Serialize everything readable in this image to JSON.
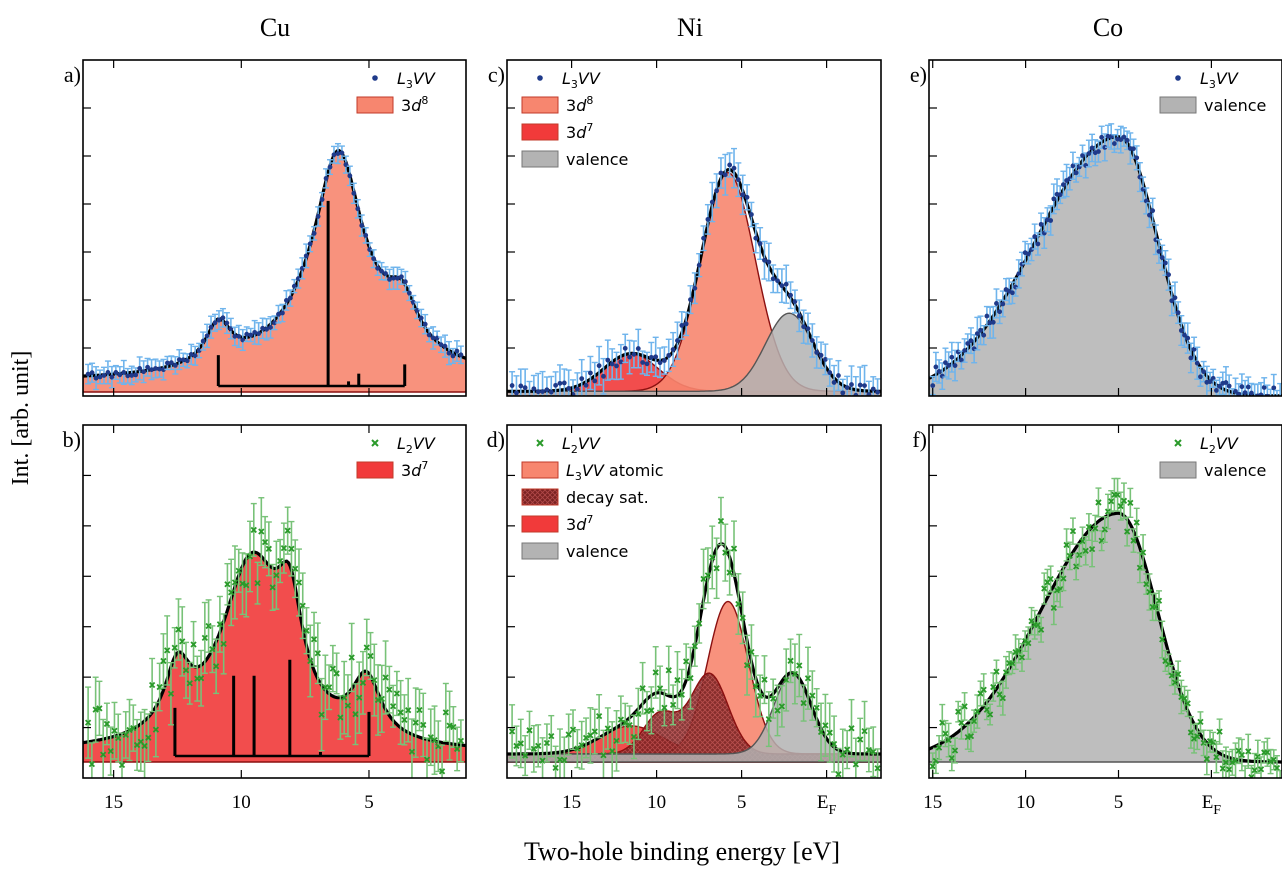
{
  "figure": {
    "column_titles": [
      "Cu",
      "Ni",
      "Co"
    ],
    "ylabel": "Int. [arb. unit]",
    "xlabel": "Two-hole binding energy [eV]"
  },
  "colors": {
    "l3_points": "#1f3a8a",
    "l3_errbar": "#6fb4ec",
    "l2_points": "#2a9a2a",
    "l2_errbar": "#78c278",
    "d8_fill": "#f7866f",
    "d7_fill": "#f13a3a",
    "valence_fill": "#b3b3b3",
    "decay_fill": "#7a2222",
    "fit_line": "#000000"
  },
  "chart_data": [
    {
      "panel": "a)",
      "type": "area",
      "element": "Cu",
      "transition": "L3VV",
      "xlim": [
        16.2,
        1.2
      ],
      "ylim": [
        0,
        1.05
      ],
      "xticks": [
        15,
        10,
        5
      ],
      "legend": [
        {
          "type": "point",
          "label": "L3VV"
        },
        {
          "type": "patch",
          "label": "3d8",
          "color": "d8_fill"
        }
      ],
      "peaks": [
        [
          10.9,
          0.13,
          0.6
        ],
        [
          6.2,
          0.55,
          1.1
        ],
        [
          6.2,
          0.19,
          2.7
        ],
        [
          3.7,
          0.14,
          0.7
        ]
      ],
      "background": 0.03,
      "components": [
        {
          "label": "3d8",
          "fill": "d8_fill",
          "peaks": [
            0,
            1,
            2,
            3
          ]
        }
      ],
      "sticks": [
        [
          10.9,
          0.1
        ],
        [
          6.6,
          0.6
        ],
        [
          5.8,
          0.015
        ],
        [
          5.4,
          0.04
        ],
        [
          3.6,
          0.07
        ]
      ],
      "stick_base": 0.0,
      "points": {
        "style": "dot",
        "n": 95,
        "x_range": [
          16,
          1.4
        ],
        "amp": 0.012,
        "err": 0.03
      }
    },
    {
      "panel": "b)",
      "type": "area",
      "element": "Cu",
      "transition": "L2VV",
      "xlim": [
        16.2,
        1.2
      ],
      "ylim": [
        0,
        0.82
      ],
      "xticks": [
        15,
        10,
        5
      ],
      "legend": [
        {
          "type": "cross",
          "label": "L2VV"
        },
        {
          "type": "patch",
          "label": "3d7",
          "color": "d7_fill"
        }
      ],
      "peaks": [
        [
          12.5,
          0.15,
          0.6
        ],
        [
          9.6,
          0.46,
          1.5
        ],
        [
          8.1,
          0.23,
          0.6
        ],
        [
          5.1,
          0.15,
          0.7
        ]
      ],
      "background": 0.02,
      "components": [
        {
          "label": "3d7",
          "fill": "d7_fill",
          "peaks": [
            0,
            1,
            2,
            3
          ]
        }
      ],
      "sticks": [
        [
          12.6,
          0.12
        ],
        [
          10.3,
          0.2
        ],
        [
          9.5,
          0.2
        ],
        [
          8.1,
          0.24
        ],
        [
          6.9,
          0.01
        ],
        [
          5.0,
          0.11
        ]
      ],
      "stick_base": 0.0,
      "points": {
        "style": "cross",
        "n": 100,
        "x_range": [
          16,
          1.4
        ],
        "amp": 0.05,
        "err": 0.07
      }
    },
    {
      "panel": "c)",
      "type": "area",
      "element": "Ni",
      "transition": "L3VV",
      "xlim": [
        18.8,
        -3.2
      ],
      "ylim": [
        0,
        1.05
      ],
      "xticks": [
        15,
        10,
        5,
        0
      ],
      "xticklabels": [
        "15",
        "10",
        "5",
        "EF"
      ],
      "legend": [
        {
          "type": "point",
          "label": "L3VV"
        },
        {
          "type": "patch",
          "label": "3d8",
          "color": "d8_fill"
        },
        {
          "type": "patch",
          "label": "3d7",
          "color": "d7_fill"
        },
        {
          "type": "patch",
          "label": "valence",
          "color": "valence_fill"
        }
      ],
      "peaks": [
        [
          11.5,
          0.12,
          1.6
        ],
        [
          5.8,
          0.7,
          1.6
        ],
        [
          2.2,
          0.25,
          1.4
        ]
      ],
      "background": 0.015,
      "components": [
        {
          "label": "3d7",
          "fill": "d7_fill",
          "peaks": [
            0
          ]
        },
        {
          "label": "3d8",
          "fill": "d8_fill",
          "peaks": [
            1
          ]
        },
        {
          "label": "valence",
          "fill": "valence_fill",
          "peaks": [
            2
          ]
        }
      ],
      "points": {
        "style": "dot",
        "n": 85,
        "x_range": [
          18.5,
          -3
        ],
        "amp": 0.025,
        "err": 0.05
      }
    },
    {
      "panel": "d)",
      "type": "area",
      "element": "Ni",
      "transition": "L2VV",
      "xlim": [
        18.8,
        -3.2
      ],
      "ylim": [
        0,
        0.82
      ],
      "xticks": [
        15,
        10,
        5,
        0
      ],
      "xticklabels": [
        "15",
        "10",
        "5",
        "EF"
      ],
      "legend": [
        {
          "type": "cross",
          "label": "L2VV"
        },
        {
          "type": "patch",
          "label": "L3VV atomic",
          "color": "d8_fill"
        },
        {
          "type": "patch",
          "label": "decay sat.",
          "color": "decay_fill",
          "hatch": true
        },
        {
          "type": "patch",
          "label": "3d7",
          "color": "d7_fill"
        },
        {
          "type": "patch",
          "label": "valence",
          "color": "valence_fill"
        }
      ],
      "peaks": [
        [
          11.5,
          0.07,
          1.8
        ],
        [
          5.8,
          0.38,
          1.2
        ],
        [
          6.9,
          0.2,
          1.1
        ],
        [
          9.8,
          0.1,
          1.0
        ],
        [
          2.0,
          0.2,
          1.1
        ]
      ],
      "background": 0.02,
      "components": [
        {
          "label": "3d7",
          "fill": "d7_fill",
          "peaks": [
            0
          ]
        },
        {
          "label": "L3VV atomic",
          "fill": "d8_fill",
          "peaks": [
            1
          ]
        },
        {
          "label": "decay sat.",
          "fill": "decay_fill",
          "peaks": [
            2,
            3
          ],
          "hatch": true
        },
        {
          "label": "valence",
          "fill": "valence_fill",
          "peaks": [
            4
          ]
        }
      ],
      "points": {
        "style": "cross",
        "n": 85,
        "x_range": [
          18.5,
          -3
        ],
        "amp": 0.04,
        "err": 0.06
      }
    },
    {
      "panel": "e)",
      "type": "area",
      "element": "Co",
      "transition": "L3VV",
      "xlim": [
        15.2,
        -3.8
      ],
      "ylim": [
        0,
        1.05
      ],
      "xticks": [
        15,
        10,
        5,
        0
      ],
      "xticklabels": [
        "15",
        "10",
        "5",
        "EF"
      ],
      "legend": [
        {
          "type": "point",
          "label": "L3VV"
        },
        {
          "type": "patch",
          "label": "valence",
          "color": "valence_fill"
        }
      ],
      "valence_shape": {
        "center": 5.0,
        "amp": 0.83,
        "sigma_left": 4.4,
        "sigma_right": 2.1
      },
      "background": 0.0,
      "components": [
        {
          "label": "valence",
          "fill": "valence_fill",
          "shape": true
        }
      ],
      "points": {
        "style": "dot",
        "n": 110,
        "x_range": [
          15,
          -3.7
        ],
        "amp": 0.03,
        "err": 0.04
      }
    },
    {
      "panel": "f)",
      "type": "area",
      "element": "Co",
      "transition": "L2VV",
      "xlim": [
        15.2,
        -3.8
      ],
      "ylim": [
        0,
        0.82
      ],
      "xticks": [
        15,
        10,
        5,
        0
      ],
      "xticklabels": [
        "15",
        "10",
        "5",
        "EF"
      ],
      "legend": [
        {
          "type": "cross",
          "label": "L2VV"
        },
        {
          "type": "patch",
          "label": "valence",
          "color": "valence_fill"
        }
      ],
      "valence_shape": {
        "center": 5.0,
        "amp": 0.62,
        "sigma_left": 4.2,
        "sigma_right": 2.1
      },
      "background": 0.0,
      "components": [
        {
          "label": "valence",
          "fill": "valence_fill",
          "shape": true
        }
      ],
      "points": {
        "style": "cross",
        "n": 110,
        "x_range": [
          15,
          -3.7
        ],
        "amp": 0.035,
        "err": 0.035
      }
    }
  ]
}
